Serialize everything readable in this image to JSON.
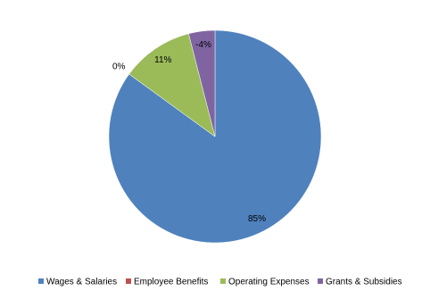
{
  "chart_data": {
    "type": "pie",
    "categories": [
      "Wages & Salaries",
      "Employee Benefits",
      "Operating Expenses",
      "Grants & Subsidies"
    ],
    "values": [
      85,
      0,
      11,
      -4
    ],
    "value_labels": [
      "85%",
      "0%",
      "11%",
      "-4%"
    ],
    "colors": [
      "#4f81bd",
      "#c0504d",
      "#9bbb59",
      "#8064a2"
    ],
    "legend": "bottom"
  }
}
